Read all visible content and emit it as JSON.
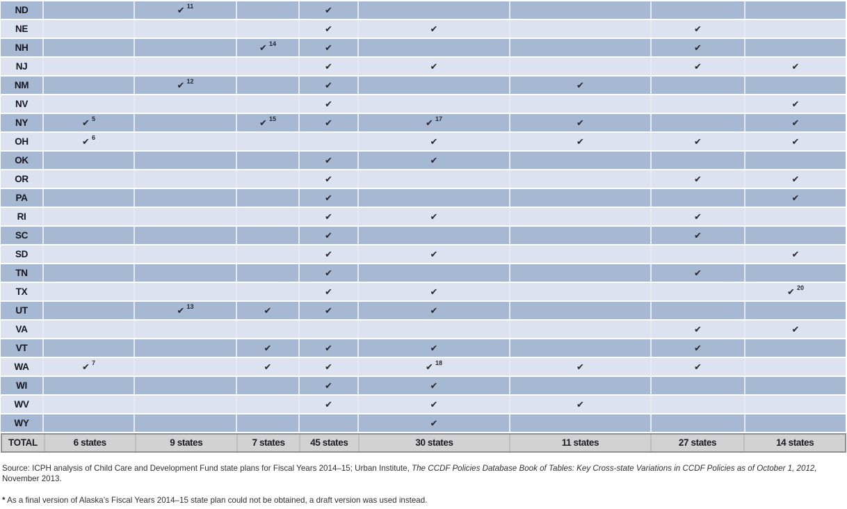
{
  "table": {
    "check_glyph": "✔",
    "total_label": "TOTAL",
    "totals": [
      "6 states",
      "9 states",
      "7 states",
      "45 states",
      "30 states",
      "11 states",
      "27 states",
      "14 states"
    ],
    "rows": [
      {
        "state": "ND",
        "checks": [
          {
            "col": 2,
            "sup": "11"
          },
          {
            "col": 4,
            "sup": ""
          }
        ]
      },
      {
        "state": "NE",
        "checks": [
          {
            "col": 4,
            "sup": ""
          },
          {
            "col": 5,
            "sup": ""
          },
          {
            "col": 7,
            "sup": ""
          }
        ]
      },
      {
        "state": "NH",
        "checks": [
          {
            "col": 3,
            "sup": "14"
          },
          {
            "col": 4,
            "sup": ""
          },
          {
            "col": 7,
            "sup": ""
          }
        ]
      },
      {
        "state": "NJ",
        "checks": [
          {
            "col": 4,
            "sup": ""
          },
          {
            "col": 5,
            "sup": ""
          },
          {
            "col": 7,
            "sup": ""
          },
          {
            "col": 8,
            "sup": ""
          }
        ]
      },
      {
        "state": "NM",
        "checks": [
          {
            "col": 2,
            "sup": "12"
          },
          {
            "col": 4,
            "sup": ""
          },
          {
            "col": 6,
            "sup": ""
          }
        ]
      },
      {
        "state": "NV",
        "checks": [
          {
            "col": 4,
            "sup": ""
          },
          {
            "col": 8,
            "sup": ""
          }
        ]
      },
      {
        "state": "NY",
        "checks": [
          {
            "col": 1,
            "sup": "5"
          },
          {
            "col": 3,
            "sup": "15"
          },
          {
            "col": 4,
            "sup": ""
          },
          {
            "col": 5,
            "sup": "17"
          },
          {
            "col": 6,
            "sup": ""
          },
          {
            "col": 8,
            "sup": ""
          }
        ]
      },
      {
        "state": "OH",
        "checks": [
          {
            "col": 1,
            "sup": "6"
          },
          {
            "col": 5,
            "sup": ""
          },
          {
            "col": 6,
            "sup": ""
          },
          {
            "col": 7,
            "sup": ""
          },
          {
            "col": 8,
            "sup": ""
          }
        ]
      },
      {
        "state": "OK",
        "checks": [
          {
            "col": 4,
            "sup": ""
          },
          {
            "col": 5,
            "sup": ""
          }
        ]
      },
      {
        "state": "OR",
        "checks": [
          {
            "col": 4,
            "sup": ""
          },
          {
            "col": 7,
            "sup": ""
          },
          {
            "col": 8,
            "sup": ""
          }
        ]
      },
      {
        "state": "PA",
        "checks": [
          {
            "col": 4,
            "sup": ""
          },
          {
            "col": 8,
            "sup": ""
          }
        ]
      },
      {
        "state": "RI",
        "checks": [
          {
            "col": 4,
            "sup": ""
          },
          {
            "col": 5,
            "sup": ""
          },
          {
            "col": 7,
            "sup": ""
          }
        ]
      },
      {
        "state": "SC",
        "checks": [
          {
            "col": 4,
            "sup": ""
          },
          {
            "col": 7,
            "sup": ""
          }
        ]
      },
      {
        "state": "SD",
        "checks": [
          {
            "col": 4,
            "sup": ""
          },
          {
            "col": 5,
            "sup": ""
          },
          {
            "col": 8,
            "sup": ""
          }
        ]
      },
      {
        "state": "TN",
        "checks": [
          {
            "col": 4,
            "sup": ""
          },
          {
            "col": 7,
            "sup": ""
          }
        ]
      },
      {
        "state": "TX",
        "checks": [
          {
            "col": 4,
            "sup": ""
          },
          {
            "col": 5,
            "sup": ""
          },
          {
            "col": 8,
            "sup": "20"
          }
        ]
      },
      {
        "state": "UT",
        "checks": [
          {
            "col": 2,
            "sup": "13"
          },
          {
            "col": 3,
            "sup": ""
          },
          {
            "col": 4,
            "sup": ""
          },
          {
            "col": 5,
            "sup": ""
          }
        ]
      },
      {
        "state": "VA",
        "checks": [
          {
            "col": 7,
            "sup": ""
          },
          {
            "col": 8,
            "sup": ""
          }
        ]
      },
      {
        "state": "VT",
        "checks": [
          {
            "col": 3,
            "sup": ""
          },
          {
            "col": 4,
            "sup": ""
          },
          {
            "col": 5,
            "sup": ""
          },
          {
            "col": 7,
            "sup": ""
          }
        ]
      },
      {
        "state": "WA",
        "checks": [
          {
            "col": 1,
            "sup": "7"
          },
          {
            "col": 3,
            "sup": ""
          },
          {
            "col": 4,
            "sup": ""
          },
          {
            "col": 5,
            "sup": "18"
          },
          {
            "col": 6,
            "sup": ""
          },
          {
            "col": 7,
            "sup": ""
          }
        ]
      },
      {
        "state": "WI",
        "checks": [
          {
            "col": 4,
            "sup": ""
          },
          {
            "col": 5,
            "sup": ""
          }
        ]
      },
      {
        "state": "WV",
        "checks": [
          {
            "col": 4,
            "sup": ""
          },
          {
            "col": 5,
            "sup": ""
          },
          {
            "col": 6,
            "sup": ""
          }
        ]
      },
      {
        "state": "WY",
        "checks": [
          {
            "col": 5,
            "sup": ""
          }
        ]
      }
    ]
  },
  "footer": {
    "source_prefix": "Source: ICPH analysis of Child Care and Development Fund state plans for Fiscal Years 2014–15; Urban Institute, ",
    "source_italic": "The CCDF Policies Database Book of Tables: Key Cross-state Variations in CCDF Policies as of October 1, 2012,",
    "source_suffix": " November 2013.",
    "footnote_marker": "*",
    "footnote_text": " As a final version of Alaska’s Fiscal Years 2014–15 state plan could not be obtained, a draft version was used instead."
  },
  "colors": {
    "row_dark": "#a7b8d3",
    "row_light": "#dce2ef",
    "total_row_bg": "#d2d2d3",
    "total_row_border": "#8e8f91",
    "check": "#26262b"
  }
}
